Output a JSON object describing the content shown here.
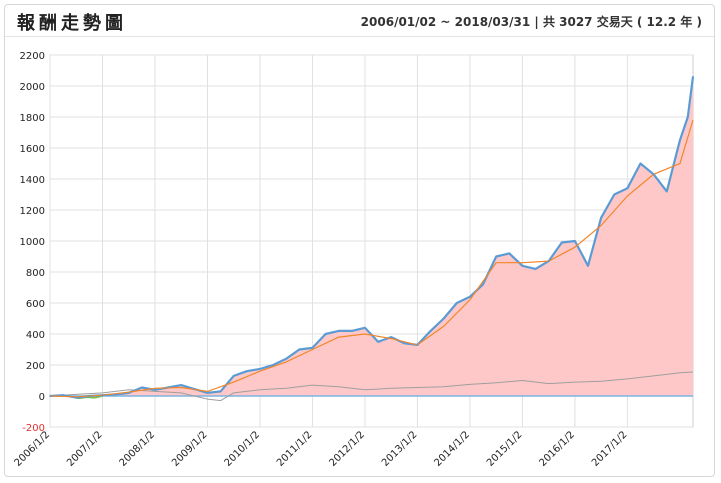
{
  "header": {
    "title": "報酬走勢圖",
    "range_text": "2006/01/02 ~ 2018/03/31 | 共 3027 交易天 ( 12.2 年 )"
  },
  "colors": {
    "area_fill": "#ffc8c8",
    "main_line": "#5b9bd5",
    "moving_avg": "#f0862a",
    "benchmark": "#9e9e9e",
    "early_segment": "#7ac143",
    "baseline": "#7fb3e0",
    "grid": "#e0e0e0",
    "negative_tick": "#e03030"
  },
  "chart_data": {
    "type": "area",
    "title": "",
    "xlabel": "",
    "ylabel": "",
    "ylim": [
      -200,
      2200
    ],
    "y_ticks": [
      -200,
      0,
      200,
      400,
      600,
      800,
      1000,
      1200,
      1400,
      1600,
      1800,
      2000,
      2200
    ],
    "x_range": [
      "2006/1/2",
      "2018/3/31"
    ],
    "x_tick_labels": [
      "2006/1/2",
      "2007/1/2",
      "2008/1/2",
      "2009/1/2",
      "2010/1/2",
      "2011/1/2",
      "2012/1/2",
      "2013/1/2",
      "2014/1/2",
      "2015/1/2",
      "2016/1/2",
      "2017/1/2"
    ],
    "x_tick_years": [
      2006.0,
      2007.0,
      2008.0,
      2009.0,
      2010.0,
      2011.0,
      2012.0,
      2013.0,
      2014.0,
      2015.0,
      2016.0,
      2017.0
    ],
    "grid": true,
    "legend": "none",
    "series": [
      {
        "role": "strategy",
        "x": [
          2006.0,
          2006.25,
          2006.5,
          2006.75,
          2007.0,
          2007.25,
          2007.5,
          2007.75,
          2008.0,
          2008.25,
          2008.5,
          2008.75,
          2009.0,
          2009.25,
          2009.5,
          2009.75,
          2010.0,
          2010.25,
          2010.5,
          2010.75,
          2011.0,
          2011.25,
          2011.5,
          2011.75,
          2012.0,
          2012.25,
          2012.5,
          2012.75,
          2013.0,
          2013.25,
          2013.5,
          2013.75,
          2014.0,
          2014.25,
          2014.5,
          2014.75,
          2015.0,
          2015.25,
          2015.5,
          2015.75,
          2016.0,
          2016.25,
          2016.5,
          2016.75,
          2017.0,
          2017.25,
          2017.5,
          2017.75,
          2018.0,
          2018.15,
          2018.25
        ],
        "values": [
          0,
          5,
          -10,
          0,
          5,
          10,
          20,
          55,
          40,
          55,
          70,
          45,
          20,
          30,
          130,
          160,
          175,
          200,
          240,
          300,
          310,
          400,
          420,
          420,
          440,
          350,
          380,
          340,
          330,
          420,
          500,
          600,
          640,
          720,
          900,
          920,
          840,
          820,
          870,
          990,
          1000,
          840,
          1150,
          1300,
          1340,
          1500,
          1430,
          1320,
          1650,
          1800,
          2060
        ]
      },
      {
        "role": "moving-average",
        "x": [
          2006.0,
          2006.5,
          2007.0,
          2007.5,
          2008.0,
          2008.5,
          2009.0,
          2009.5,
          2010.0,
          2010.5,
          2011.0,
          2011.5,
          2012.0,
          2012.5,
          2013.0,
          2013.5,
          2014.0,
          2014.5,
          2015.0,
          2015.5,
          2016.0,
          2016.5,
          2017.0,
          2017.5,
          2018.0,
          2018.25
        ],
        "values": [
          0,
          -5,
          5,
          25,
          50,
          55,
          30,
          90,
          160,
          220,
          300,
          380,
          400,
          370,
          330,
          450,
          620,
          860,
          860,
          870,
          960,
          1100,
          1290,
          1430,
          1500,
          1780
        ]
      },
      {
        "role": "benchmark",
        "x": [
          2006.0,
          2006.5,
          2007.0,
          2007.5,
          2008.0,
          2008.5,
          2009.0,
          2009.25,
          2009.5,
          2010.0,
          2010.5,
          2011.0,
          2011.5,
          2012.0,
          2012.5,
          2013.0,
          2013.5,
          2014.0,
          2014.5,
          2015.0,
          2015.5,
          2016.0,
          2016.5,
          2017.0,
          2017.5,
          2018.0,
          2018.25
        ],
        "values": [
          0,
          10,
          20,
          40,
          30,
          20,
          -20,
          -30,
          20,
          40,
          50,
          70,
          60,
          40,
          50,
          55,
          60,
          75,
          85,
          100,
          80,
          90,
          95,
          110,
          130,
          150,
          155
        ]
      }
    ]
  }
}
